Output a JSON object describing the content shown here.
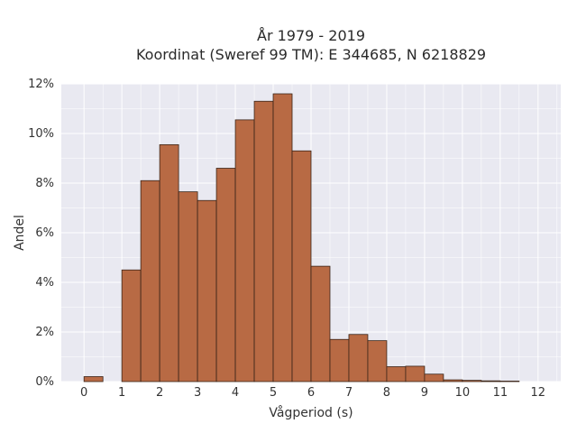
{
  "chart_data": {
    "type": "bar",
    "title": "År 1979 - 2019",
    "subtitle": "Koordinat (Sweref 99 TM): E 344685, N 6218829",
    "xlabel": "Vågperiod (s)",
    "ylabel": "Andel",
    "xlim": [
      -0.6,
      12.6
    ],
    "ylim": [
      0,
      12
    ],
    "xticks": [
      0,
      1,
      2,
      3,
      4,
      5,
      6,
      7,
      8,
      9,
      10,
      11,
      12
    ],
    "yticks": [
      0,
      2,
      4,
      6,
      8,
      10,
      12
    ],
    "ytick_labels": [
      "0%",
      "2%",
      "4%",
      "6%",
      "8%",
      "10%",
      "12%"
    ],
    "bin_width": 0.5,
    "bins": [
      {
        "start": 0.0,
        "value": 0.2
      },
      {
        "start": 0.5,
        "value": 0.0
      },
      {
        "start": 1.0,
        "value": 4.5
      },
      {
        "start": 1.5,
        "value": 8.1
      },
      {
        "start": 2.0,
        "value": 9.55
      },
      {
        "start": 2.5,
        "value": 7.65
      },
      {
        "start": 3.0,
        "value": 7.3
      },
      {
        "start": 3.5,
        "value": 8.6
      },
      {
        "start": 4.0,
        "value": 10.55
      },
      {
        "start": 4.5,
        "value": 11.3
      },
      {
        "start": 5.0,
        "value": 11.6
      },
      {
        "start": 5.5,
        "value": 9.3
      },
      {
        "start": 6.0,
        "value": 4.65
      },
      {
        "start": 6.5,
        "value": 1.7
      },
      {
        "start": 7.0,
        "value": 1.9
      },
      {
        "start": 7.5,
        "value": 1.65
      },
      {
        "start": 8.0,
        "value": 0.6
      },
      {
        "start": 8.5,
        "value": 0.62
      },
      {
        "start": 9.0,
        "value": 0.3
      },
      {
        "start": 9.5,
        "value": 0.07
      },
      {
        "start": 10.0,
        "value": 0.05
      },
      {
        "start": 10.5,
        "value": 0.03
      },
      {
        "start": 11.0,
        "value": 0.02
      }
    ],
    "grid": true,
    "colors": {
      "bar_fill": "#b86a44",
      "bar_stroke": "#3a2418",
      "plot_bg": "#e9e9f1",
      "grid": "#ffffff"
    }
  }
}
